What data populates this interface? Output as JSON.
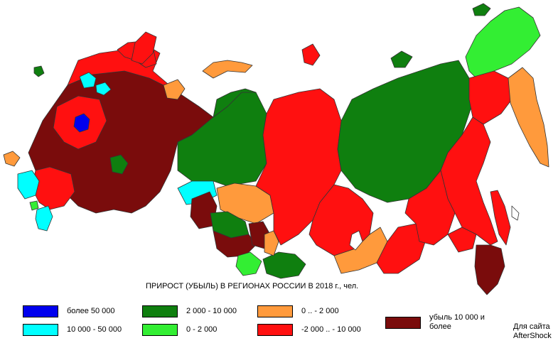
{
  "title": "ПРИРОСТ (УБЫЛЬ) В РЕГИОНАХ РОССИИ В 2018 г., чел.",
  "colors": {
    "blue": "#0000ee",
    "cyan": "#00ffff",
    "dark_green": "#0f7f0f",
    "light_green": "#33ee33",
    "orange": "#ff9a3c",
    "red": "#ff1010",
    "dark_red": "#7a0c0c"
  },
  "legend": [
    {
      "label": "более 50 000",
      "color": "#0000ee"
    },
    {
      "label": "10 000 - 50 000",
      "color": "#00ffff"
    },
    {
      "label": "2 000 - 10 000",
      "color": "#0f7f0f"
    },
    {
      "label": "0 - 2 000",
      "color": "#33ee33"
    },
    {
      "label": "0 .. - 2 000",
      "color": "#ff9a3c"
    },
    {
      "label": "-2 000 .. - 10 000",
      "color": "#ff1010"
    },
    {
      "label": "убыль 10 000 и более",
      "color": "#7a0c0c"
    }
  ],
  "credit": "Для сайта AfterShock"
}
